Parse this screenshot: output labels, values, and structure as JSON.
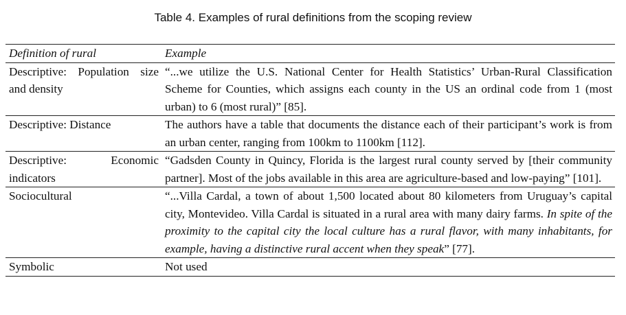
{
  "caption": "Table 4. Examples of rural definitions from the scoping review",
  "headers": {
    "definition": "Definition of rural",
    "example": "Example"
  },
  "rows": [
    {
      "definition": "Descriptive: Population size and density",
      "example": "“...we utilize the U.S. National Center for Health Statistics’ Urban-Rural Classi­fication Scheme for Counties, which assigns each county in the US an ordinal code from 1 (most urban) to 6 (most rural)” [85]."
    },
    {
      "definition": "Descriptive: Distance",
      "example": "The authors have a table that documents the distance each of their partici­pant’s work is from an urban center, ranging from 100km to 1100km [112]."
    },
    {
      "definition": "Descriptive: Economic indicators",
      "example": "“Gadsden County in Quincy, Florida is the largest rural county served by [their community partner]. Most of the jobs available in this area are agriculture-based and low-paying” [101]."
    },
    {
      "definition": "Sociocultural",
      "example_plain": "“...Villa Cardal, a town of about 1,500 located about 80 kilometers from Uru­guay’s capital city, Montevideo. Villa Cardal is situated in a rural area with many dairy farms. ",
      "example_italic": "In spite of the proximity to the capital city the local culture has a rural flavor, with many inhabitants, for example, having a distinctive rural accent when they speak",
      "example_end": "” [77]."
    },
    {
      "definition": "Symbolic",
      "example": "Not used"
    }
  ]
}
